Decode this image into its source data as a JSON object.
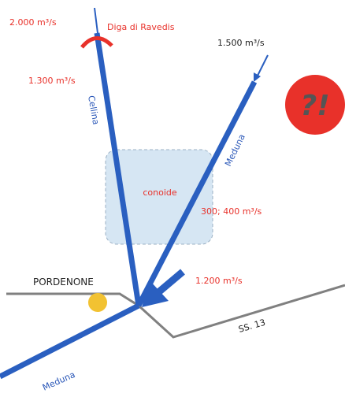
{
  "labels": {
    "flow_top_left": "2.000 m³/s",
    "dam": "Diga di Ravedis",
    "flow_top_right": "1.500 m³/s",
    "flow_cellina": "1.300 m³/s",
    "river_cellina": "Cellina",
    "river_meduna_upper": "Meduna",
    "alert": "?!",
    "fan": "conoide",
    "flow_meduna": "300; 400 m³/s",
    "city": "PORDENONE",
    "flow_junction": "1.200 m³/s",
    "road": "SS. 13",
    "river_meduna_lower": "Meduna"
  }
}
